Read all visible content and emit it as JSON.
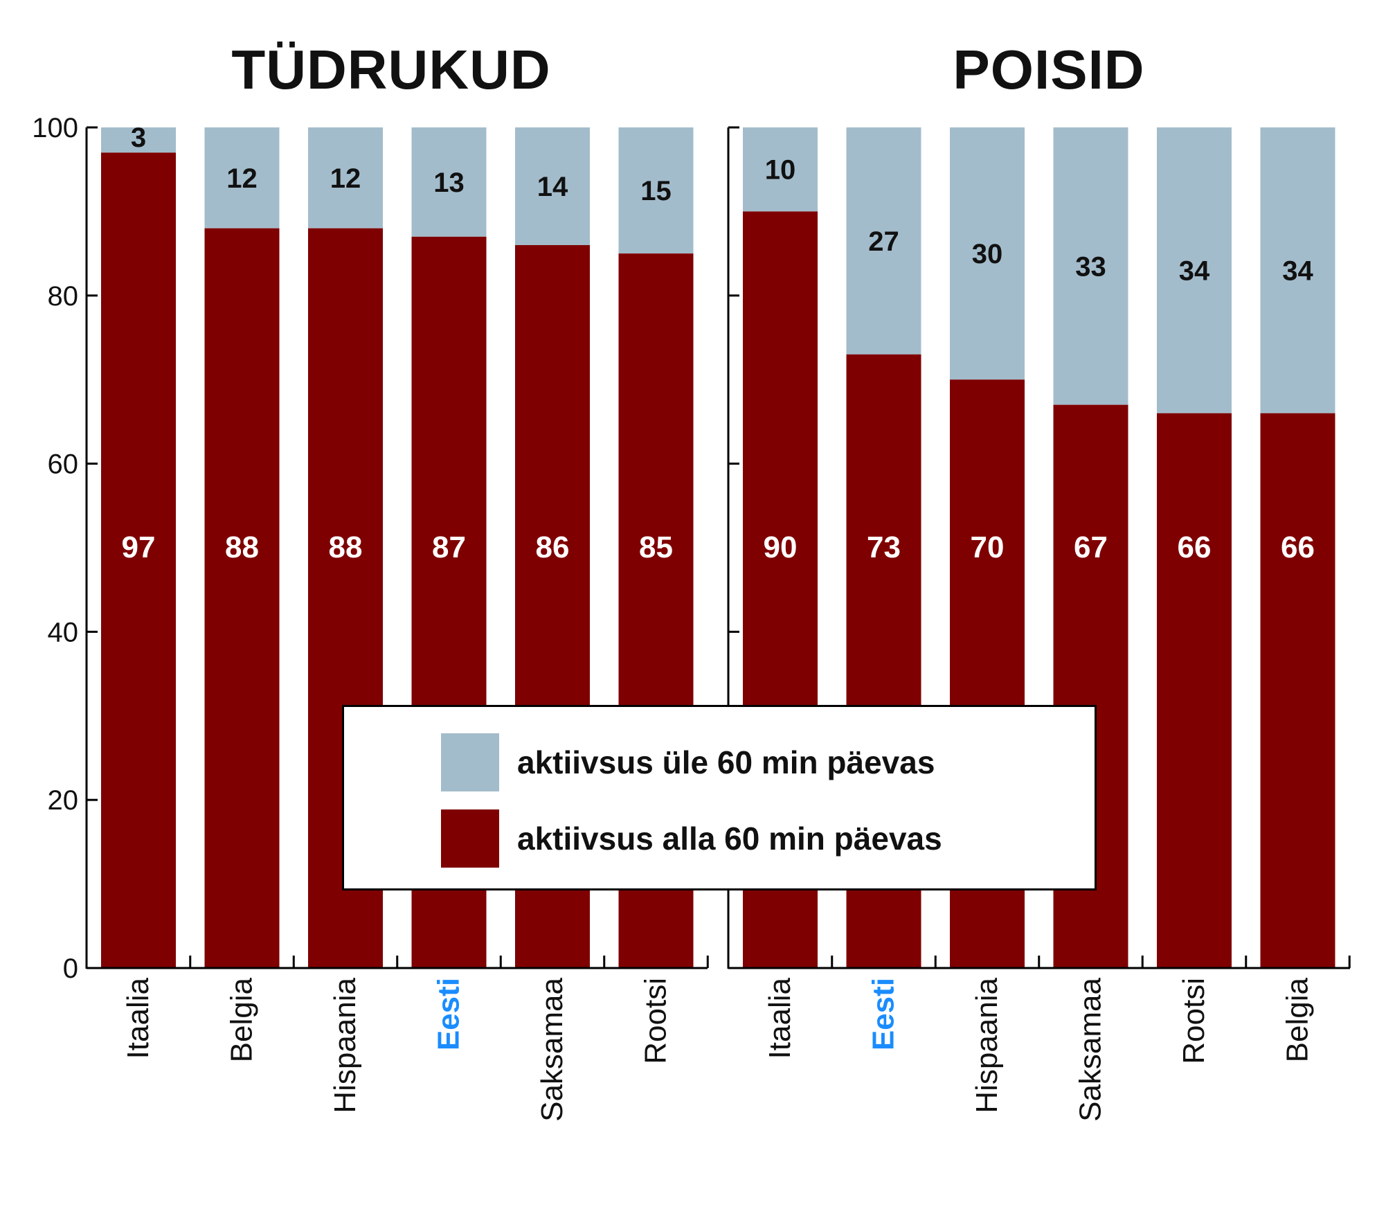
{
  "colors": {
    "above": "#a3bccb",
    "below": "#7f0000",
    "eesti_label": "#1a8cff",
    "axis": "#000000"
  },
  "chart_data": [
    {
      "type": "bar",
      "stacked": true,
      "title": "TÜDRUKUD",
      "categories": [
        "Itaalia",
        "Belgia",
        "Hispaania",
        "Eesti",
        "Saksamaa",
        "Rootsi"
      ],
      "highlight_category": "Eesti",
      "series": [
        {
          "name": "aktiivsus alla 60 min päevas",
          "values": [
            97,
            88,
            88,
            87,
            86,
            85
          ]
        },
        {
          "name": "aktiivsus üle 60 min päevas",
          "values": [
            3,
            12,
            12,
            13,
            14,
            15
          ]
        }
      ],
      "ylim": [
        0,
        100
      ],
      "yticks": [
        0,
        20,
        40,
        60,
        80,
        100
      ],
      "ytick_labels": [
        "0",
        "20",
        "40",
        "60",
        "80",
        "100"
      ]
    },
    {
      "type": "bar",
      "stacked": true,
      "title": "POISID",
      "categories": [
        "Itaalia",
        "Eesti",
        "Hispaania",
        "Saksamaa",
        "Rootsi",
        "Belgia"
      ],
      "highlight_category": "Eesti",
      "series": [
        {
          "name": "aktiivsus alla 60 min päevas",
          "values": [
            90,
            73,
            70,
            67,
            66,
            66
          ]
        },
        {
          "name": "aktiivsus üle 60 min päevas",
          "values": [
            10,
            27,
            30,
            33,
            34,
            34
          ]
        }
      ],
      "ylim": [
        0,
        100
      ]
    }
  ],
  "legend": {
    "position": "bottom-center",
    "items": [
      {
        "label": "aktiivsus üle 60 min päevas",
        "color": "#a3bccb"
      },
      {
        "label": "aktiivsus alla 60 min päevas",
        "color": "#7f0000"
      }
    ]
  }
}
